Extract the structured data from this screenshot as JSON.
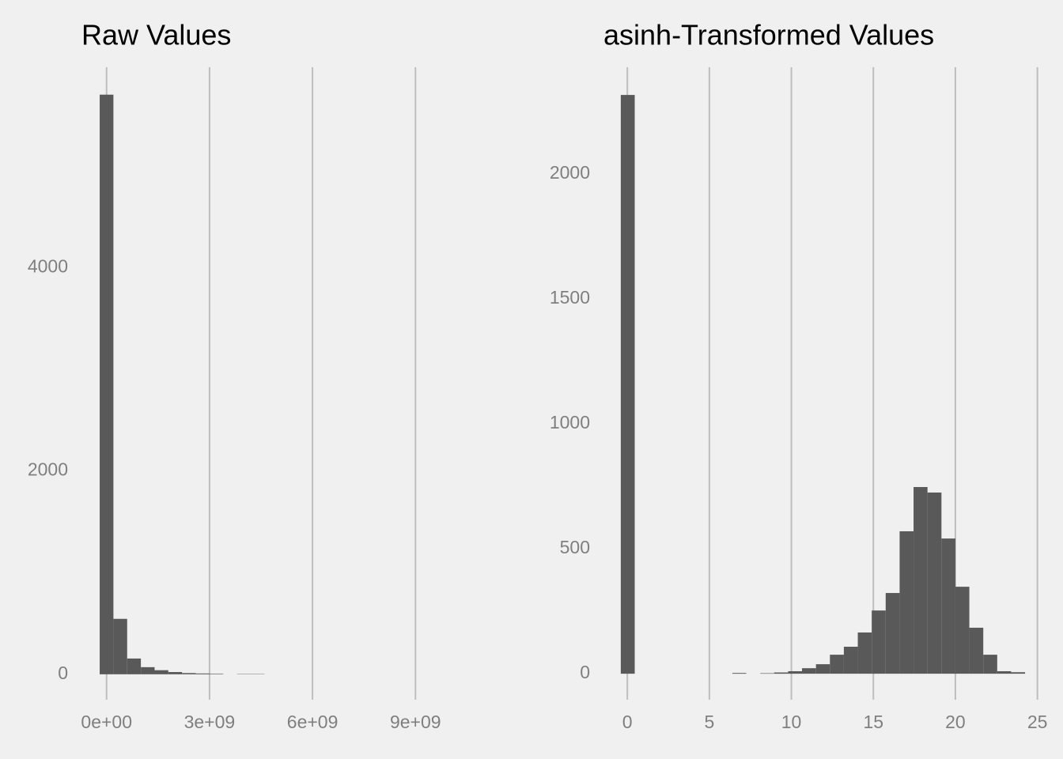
{
  "chart_data": [
    {
      "type": "histogram",
      "title": "Raw Values",
      "bins": [
        -200000000.0,
        200000000.0,
        600000000.0,
        1000000000.0,
        1400000000.0,
        1800000000.0,
        2200000000.0,
        2600000000.0,
        3000000000.0,
        3400000000.0,
        3800000000.0,
        4200000000.0,
        4600000000.0
      ],
      "values": [
        5700,
        545,
        155,
        70,
        40,
        22,
        12,
        8,
        5,
        0,
        3,
        3
      ],
      "color": "#595959",
      "xlim": [
        -800000000.0,
        9800000000.0
      ],
      "xticks": [
        {
          "value": 0,
          "label": "0e+00"
        },
        {
          "value": 3000000000.0,
          "label": "3e+09"
        },
        {
          "value": 6000000000.0,
          "label": "6e+09"
        },
        {
          "value": 9000000000.0,
          "label": "9e+09"
        }
      ],
      "ylim": [
        -250,
        5970
      ],
      "yticks": [
        0,
        2000,
        4000
      ],
      "grid": "x"
    },
    {
      "type": "histogram",
      "title": "asinh-Transformed Values",
      "bins": [
        -0.4,
        0.45,
        1.3,
        2.15,
        3.0,
        3.85,
        4.7,
        5.55,
        6.4,
        7.25,
        8.1,
        8.95,
        9.8,
        10.65,
        11.5,
        12.35,
        13.2,
        14.05,
        14.9,
        15.75,
        16.6,
        17.45,
        18.3,
        19.15,
        20.0,
        20.85,
        21.7,
        22.55,
        23.4,
        24.25
      ],
      "values": [
        2316,
        0,
        0,
        0,
        0,
        0,
        0,
        0,
        3,
        0,
        2,
        5,
        10,
        22,
        38,
        76,
        108,
        165,
        253,
        323,
        570,
        747,
        725,
        541,
        348,
        184,
        76,
        10,
        6
      ],
      "color": "#595959",
      "xlim": [
        -1.6,
        25.5
      ],
      "xticks": [
        0,
        5,
        10,
        15,
        20,
        25
      ],
      "ylim": [
        -104,
        2427
      ],
      "yticks": [
        0,
        500,
        1000,
        1500,
        2000
      ],
      "grid": "x"
    }
  ]
}
